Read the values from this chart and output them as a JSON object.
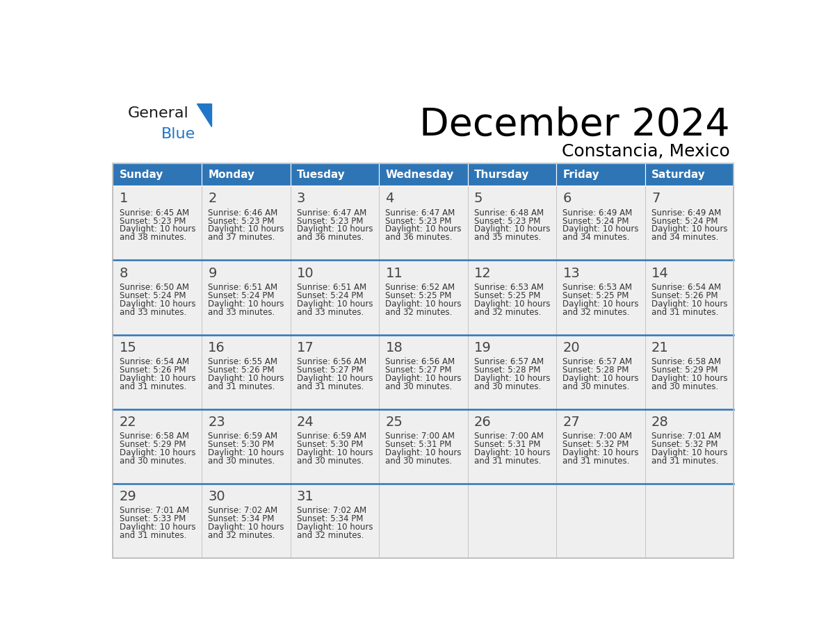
{
  "title": "December 2024",
  "subtitle": "Constancia, Mexico",
  "header_color": "#2E75B6",
  "header_text_color": "#FFFFFF",
  "day_names": [
    "Sunday",
    "Monday",
    "Tuesday",
    "Wednesday",
    "Thursday",
    "Friday",
    "Saturday"
  ],
  "weeks": [
    [
      {
        "day": 1,
        "sunrise": "6:45 AM",
        "sunset": "5:23 PM",
        "daylight": "10 hours and 38 minutes."
      },
      {
        "day": 2,
        "sunrise": "6:46 AM",
        "sunset": "5:23 PM",
        "daylight": "10 hours and 37 minutes."
      },
      {
        "day": 3,
        "sunrise": "6:47 AM",
        "sunset": "5:23 PM",
        "daylight": "10 hours and 36 minutes."
      },
      {
        "day": 4,
        "sunrise": "6:47 AM",
        "sunset": "5:23 PM",
        "daylight": "10 hours and 36 minutes."
      },
      {
        "day": 5,
        "sunrise": "6:48 AM",
        "sunset": "5:23 PM",
        "daylight": "10 hours and 35 minutes."
      },
      {
        "day": 6,
        "sunrise": "6:49 AM",
        "sunset": "5:24 PM",
        "daylight": "10 hours and 34 minutes."
      },
      {
        "day": 7,
        "sunrise": "6:49 AM",
        "sunset": "5:24 PM",
        "daylight": "10 hours and 34 minutes."
      }
    ],
    [
      {
        "day": 8,
        "sunrise": "6:50 AM",
        "sunset": "5:24 PM",
        "daylight": "10 hours and 33 minutes."
      },
      {
        "day": 9,
        "sunrise": "6:51 AM",
        "sunset": "5:24 PM",
        "daylight": "10 hours and 33 minutes."
      },
      {
        "day": 10,
        "sunrise": "6:51 AM",
        "sunset": "5:24 PM",
        "daylight": "10 hours and 33 minutes."
      },
      {
        "day": 11,
        "sunrise": "6:52 AM",
        "sunset": "5:25 PM",
        "daylight": "10 hours and 32 minutes."
      },
      {
        "day": 12,
        "sunrise": "6:53 AM",
        "sunset": "5:25 PM",
        "daylight": "10 hours and 32 minutes."
      },
      {
        "day": 13,
        "sunrise": "6:53 AM",
        "sunset": "5:25 PM",
        "daylight": "10 hours and 32 minutes."
      },
      {
        "day": 14,
        "sunrise": "6:54 AM",
        "sunset": "5:26 PM",
        "daylight": "10 hours and 31 minutes."
      }
    ],
    [
      {
        "day": 15,
        "sunrise": "6:54 AM",
        "sunset": "5:26 PM",
        "daylight": "10 hours and 31 minutes."
      },
      {
        "day": 16,
        "sunrise": "6:55 AM",
        "sunset": "5:26 PM",
        "daylight": "10 hours and 31 minutes."
      },
      {
        "day": 17,
        "sunrise": "6:56 AM",
        "sunset": "5:27 PM",
        "daylight": "10 hours and 31 minutes."
      },
      {
        "day": 18,
        "sunrise": "6:56 AM",
        "sunset": "5:27 PM",
        "daylight": "10 hours and 30 minutes."
      },
      {
        "day": 19,
        "sunrise": "6:57 AM",
        "sunset": "5:28 PM",
        "daylight": "10 hours and 30 minutes."
      },
      {
        "day": 20,
        "sunrise": "6:57 AM",
        "sunset": "5:28 PM",
        "daylight": "10 hours and 30 minutes."
      },
      {
        "day": 21,
        "sunrise": "6:58 AM",
        "sunset": "5:29 PM",
        "daylight": "10 hours and 30 minutes."
      }
    ],
    [
      {
        "day": 22,
        "sunrise": "6:58 AM",
        "sunset": "5:29 PM",
        "daylight": "10 hours and 30 minutes."
      },
      {
        "day": 23,
        "sunrise": "6:59 AM",
        "sunset": "5:30 PM",
        "daylight": "10 hours and 30 minutes."
      },
      {
        "day": 24,
        "sunrise": "6:59 AM",
        "sunset": "5:30 PM",
        "daylight": "10 hours and 30 minutes."
      },
      {
        "day": 25,
        "sunrise": "7:00 AM",
        "sunset": "5:31 PM",
        "daylight": "10 hours and 30 minutes."
      },
      {
        "day": 26,
        "sunrise": "7:00 AM",
        "sunset": "5:31 PM",
        "daylight": "10 hours and 31 minutes."
      },
      {
        "day": 27,
        "sunrise": "7:00 AM",
        "sunset": "5:32 PM",
        "daylight": "10 hours and 31 minutes."
      },
      {
        "day": 28,
        "sunrise": "7:01 AM",
        "sunset": "5:32 PM",
        "daylight": "10 hours and 31 minutes."
      }
    ],
    [
      {
        "day": 29,
        "sunrise": "7:01 AM",
        "sunset": "5:33 PM",
        "daylight": "10 hours and 31 minutes."
      },
      {
        "day": 30,
        "sunrise": "7:02 AM",
        "sunset": "5:34 PM",
        "daylight": "10 hours and 32 minutes."
      },
      {
        "day": 31,
        "sunrise": "7:02 AM",
        "sunset": "5:34 PM",
        "daylight": "10 hours and 32 minutes."
      },
      null,
      null,
      null,
      null
    ]
  ],
  "cell_bg_color": "#EFEFEF",
  "border_color": "#BBBBBB",
  "week_divider_color": "#2E75B6",
  "text_color": "#333333",
  "day_num_color": "#444444",
  "logo_general_color": "#1A1A1A",
  "logo_blue_color": "#2176C7",
  "title_fontsize": 40,
  "subtitle_fontsize": 18,
  "header_fontsize": 11,
  "day_num_fontsize": 14,
  "cell_text_fontsize": 8.5
}
